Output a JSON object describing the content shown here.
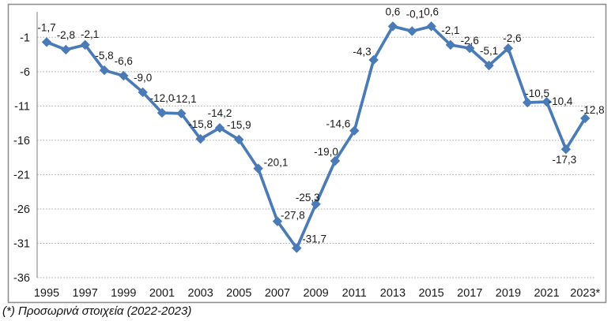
{
  "chart_data": {
    "type": "line",
    "title": "",
    "xlabel": "",
    "ylabel": "",
    "x": [
      1995,
      1996,
      1997,
      1998,
      1999,
      2000,
      2001,
      2002,
      2003,
      2004,
      2005,
      2006,
      2007,
      2008,
      2009,
      2010,
      2011,
      2012,
      2013,
      2014,
      2015,
      2016,
      2017,
      2018,
      2019,
      2020,
      2021,
      2022,
      2023
    ],
    "values": [
      -1.7,
      -2.8,
      -2.1,
      -5.8,
      -6.6,
      -9.0,
      -12.0,
      -12.1,
      -15.8,
      -14.2,
      -15.9,
      -20.1,
      -27.8,
      -31.7,
      -25.3,
      -19.0,
      -14.6,
      -4.3,
      0.6,
      -0.1,
      0.6,
      -2.1,
      -2.6,
      -5.1,
      -2.6,
      -10.5,
      -10.4,
      -17.3,
      -12.8
    ],
    "point_labels": [
      "-1,7",
      "-2,8",
      "-2,1",
      "-5,8",
      "-6,6",
      "-9,0",
      "-12,0",
      "-12,1",
      "-15,8",
      "-14,2",
      "-15,9",
      "-20,1",
      "-27,8",
      "-31,7",
      "-25,3",
      "-19,0",
      "-14,6",
      "-4,3",
      "0,6",
      "-0,1",
      "0,6",
      "-2,1",
      "-2,6",
      "-5,1",
      "-2,6",
      "-10,5",
      "-10,4",
      "-17,3",
      "-12,8"
    ],
    "x_tick_labels": [
      "1995",
      "1997",
      "1999",
      "2001",
      "2003",
      "2005",
      "2007",
      "2009",
      "2011",
      "2013",
      "2015",
      "2017",
      "2019",
      "2021",
      "2023*"
    ],
    "y_ticks": [
      -1,
      -6,
      -11,
      -16,
      -21,
      -26,
      -31,
      -36
    ],
    "y_tick_labels": [
      "-1",
      "-6",
      "-11",
      "-16",
      "-21",
      "-26",
      "-31",
      "-36"
    ],
    "ylim": [
      3,
      -36
    ],
    "grid": "horizontal-dotted",
    "legend": "none",
    "marker": "diamond",
    "colors": {
      "series": "#4A7BB7",
      "gridline": "#A9A9A9",
      "axis_line": "#9B9B9B",
      "border": "#8F8F8F",
      "text": "#1A1A1A"
    }
  },
  "footnote": "(*) Προσωρινά στοιχεία (2022-2023)"
}
